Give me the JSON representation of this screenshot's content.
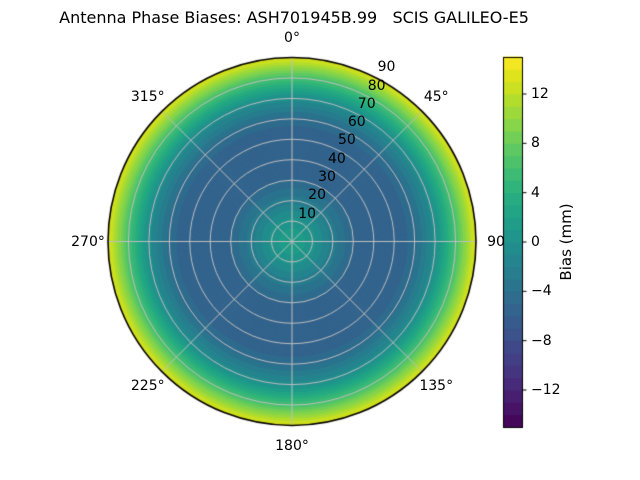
{
  "title": "Antenna Phase Biases: ASH701945B.99   SCIS GALILEO-E5",
  "chart_data": {
    "type": "heatmap",
    "subtype": "polar_contour",
    "title": "Antenna Phase Biases: ASH701945B.99   SCIS GALILEO-E5",
    "antenna": "ASH701945B.99",
    "model": "SCIS",
    "signal": "GALILEO-E5",
    "angular_labels": [
      {
        "angle_deg": 0,
        "label": "0°"
      },
      {
        "angle_deg": 45,
        "label": "45°"
      },
      {
        "angle_deg": 90,
        "label": "90"
      },
      {
        "angle_deg": 135,
        "label": "135°"
      },
      {
        "angle_deg": 180,
        "label": "180°"
      },
      {
        "angle_deg": 225,
        "label": "225°"
      },
      {
        "angle_deg": 270,
        "label": "270°"
      },
      {
        "angle_deg": 315,
        "label": "315°"
      }
    ],
    "radial_ticks": [
      10,
      20,
      30,
      40,
      50,
      60,
      70,
      80,
      90
    ],
    "radial_max": 90,
    "grid_step_deg": 10,
    "spoke_step_deg": 45,
    "grid_on": true,
    "grid_color": "#bfbfbf",
    "outline_color": "#000000",
    "profile": {
      "comment": "azimuthally averaged phase bias vs zenith angle, read from colors",
      "r_deg": [
        0,
        10,
        20,
        30,
        40,
        50,
        60,
        70,
        80,
        90
      ],
      "bias_mm": [
        2.0,
        0.5,
        -2.5,
        -5.0,
        -6.0,
        -6.0,
        -4.5,
        -0.5,
        6.0,
        13.5
      ]
    },
    "contour_levels": {
      "vmin": -15,
      "vmax": 15,
      "step_mm": 1
    },
    "colorbar": {
      "label": "Bias (mm)",
      "tick_values": [
        12,
        8,
        4,
        0,
        -4,
        -8,
        -12
      ],
      "tick_labels": [
        "12",
        "8",
        "4",
        "0",
        "−4",
        "−8",
        "−12"
      ],
      "vmin": -15,
      "vmax": 15
    },
    "colormap": {
      "name": "viridis",
      "anchors": [
        "#440154",
        "#48186a",
        "#472d7b",
        "#424086",
        "#3b528b",
        "#33638d",
        "#2c728e",
        "#26828e",
        "#21918c",
        "#1fa088",
        "#28ae80",
        "#3fbc73",
        "#5ec962",
        "#84d44b",
        "#addc30",
        "#d8e219",
        "#fde725"
      ]
    }
  }
}
